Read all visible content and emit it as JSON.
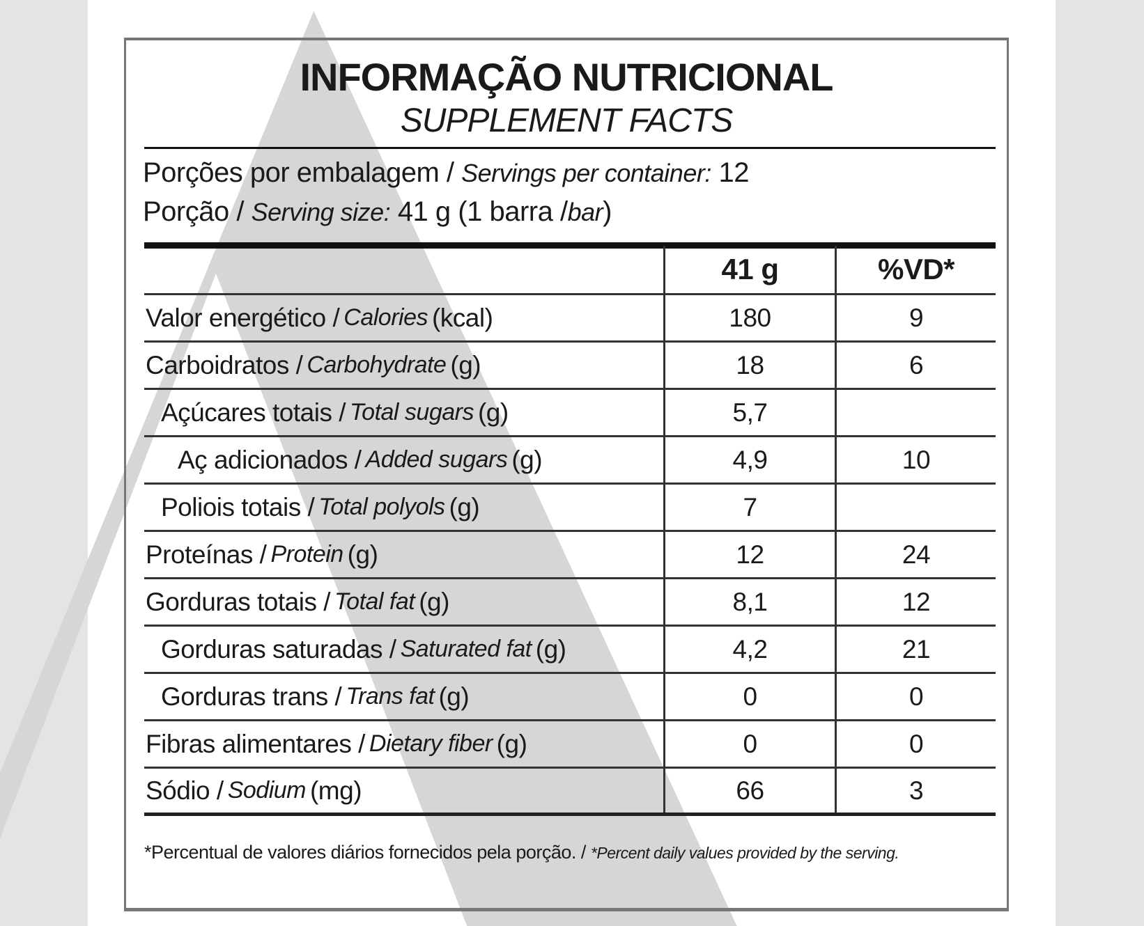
{
  "title": "INFORMAÇÃO NUTRICIONAL",
  "subtitle": "SUPPLEMENT FACTS",
  "servings": {
    "per_container_pt": "Porções por embalagem /",
    "per_container_en": "Servings per container:",
    "per_container_value": "12",
    "size_pt": "Porção /",
    "size_en": "Serving size:",
    "size_value": "41 g (1 barra /",
    "size_en2": "bar",
    "size_close": ")"
  },
  "table": {
    "headers": [
      "",
      "41 g",
      "%VD*"
    ],
    "rows": [
      {
        "pt": "Valor energético /",
        "en": "Calories",
        "unit": "(kcal)",
        "amount": "180",
        "dv": "9",
        "indent": 0
      },
      {
        "pt": "Carboidratos /",
        "en": "Carbohydrate",
        "unit": "(g)",
        "amount": "18",
        "dv": "6",
        "indent": 0
      },
      {
        "pt": "Açúcares totais /",
        "en": "Total sugars",
        "unit": "(g)",
        "amount": "5,7",
        "dv": "",
        "indent": 1
      },
      {
        "pt": "Aç adicionados /",
        "en": "Added sugars",
        "unit": "(g)",
        "amount": "4,9",
        "dv": "10",
        "indent": 2
      },
      {
        "pt": "Poliois totais /",
        "en": "Total polyols",
        "unit": "(g)",
        "amount": "7",
        "dv": "",
        "indent": 1
      },
      {
        "pt": "Proteínas /",
        "en": "Protein",
        "unit": "(g)",
        "amount": "12",
        "dv": "24",
        "indent": 0
      },
      {
        "pt": "Gorduras totais /",
        "en": "Total fat",
        "unit": "(g)",
        "amount": "8,1",
        "dv": "12",
        "indent": 0
      },
      {
        "pt": "Gorduras saturadas /",
        "en": "Saturated fat",
        "unit": "(g)",
        "amount": "4,2",
        "dv": "21",
        "indent": 1
      },
      {
        "pt": "Gorduras trans /",
        "en": "Trans fat",
        "unit": "(g)",
        "amount": "0",
        "dv": "0",
        "indent": 1
      },
      {
        "pt": "Fibras alimentares /",
        "en": "Dietary fiber",
        "unit": "(g)",
        "amount": "0",
        "dv": "0",
        "indent": 0
      },
      {
        "pt": "Sódio /",
        "en": "Sodium",
        "unit": "(mg)",
        "amount": "66",
        "dv": "3",
        "indent": 0
      }
    ]
  },
  "footnote": {
    "pt": "*Percentual de valores diários fornecidos pela porção. /",
    "en": "*Percent daily values provided by the serving."
  },
  "colors": {
    "background": "#e4e4e4",
    "watermark": "#d6d6d6",
    "text": "#1a1a1a"
  }
}
